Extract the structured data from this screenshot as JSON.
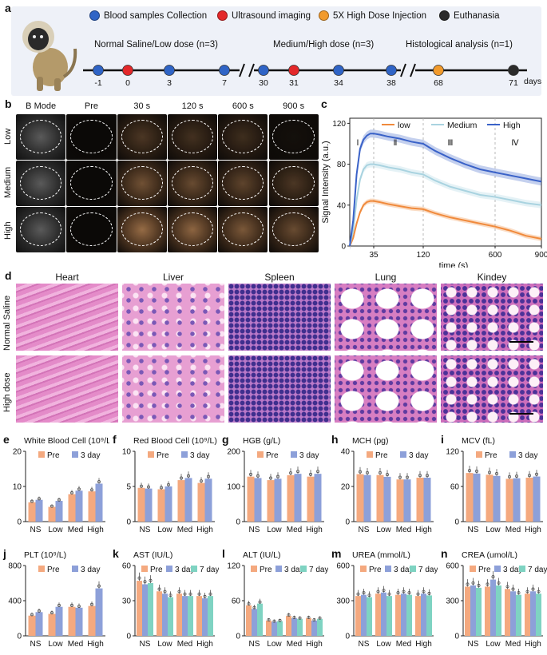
{
  "panel_labels": {
    "a": "a",
    "b": "b",
    "c": "c",
    "d": "d",
    "e": "e",
    "f": "f",
    "g": "g",
    "h": "h",
    "i": "i",
    "j": "j",
    "k": "k",
    "l": "l",
    "m": "m",
    "n": "n"
  },
  "legend": [
    {
      "label": "Blood samples Collection",
      "color": "#2f64c6"
    },
    {
      "label": "Ultrasound imaging",
      "color": "#e3282a"
    },
    {
      "label": "5X High Dose Injection",
      "color": "#f19a2c"
    },
    {
      "label": "Euthanasia",
      "color": "#2b2b2b"
    }
  ],
  "timeline": {
    "phase1": "Normal Saline/Low  dose (n=3)",
    "phase2": "Medium/High  dose (n=3)",
    "phase3": "Histological analysis (n=1)",
    "unit": "days",
    "days": [
      "-1",
      "0",
      "3",
      "7",
      "30",
      "31",
      "34",
      "38",
      "68",
      "71"
    ],
    "day_colors": [
      "#2f64c6",
      "#e3282a",
      "#2f64c6",
      "#2f64c6",
      "#2f64c6",
      "#e3282a",
      "#2f64c6",
      "#2f64c6",
      "#f19a2c",
      "#2b2b2b"
    ]
  },
  "ultrasound": {
    "columns": [
      "B Mode",
      "Pre",
      "30 s",
      "120 s",
      "600 s",
      "900 s"
    ],
    "rows": [
      "Low",
      "Medium",
      "High"
    ]
  },
  "histology": {
    "columns": [
      "Heart",
      "Liver",
      "Spleen",
      "Lung",
      "Kindey"
    ],
    "rows": [
      "Normal Saline",
      "High dose"
    ]
  },
  "colors": {
    "pre": "#f4a97f",
    "day3": "#8da0d9",
    "day7": "#7fd3c2",
    "low": "#f08a3c",
    "medium": "#a9d3e0",
    "high": "#3a62c8"
  },
  "chart_data": [
    {
      "type": "line",
      "panel": "c",
      "ylabel": "Signal Intensity (a.u.)",
      "xlabel": "time (s)",
      "xticks": [
        "35",
        "120",
        "600",
        "900"
      ],
      "yticks": [
        0,
        40,
        80,
        120
      ],
      "ylim": [
        0,
        125
      ],
      "phases": [
        "Ⅰ",
        "Ⅱ",
        "Ⅲ",
        "Ⅳ"
      ],
      "x": [
        0,
        5,
        10,
        15,
        20,
        25,
        30,
        35,
        45,
        60,
        80,
        100,
        120,
        200,
        300,
        400,
        500,
        600,
        700,
        800,
        900
      ],
      "series": [
        {
          "name": "low",
          "values": [
            0,
            8,
            22,
            33,
            40,
            43,
            44,
            44,
            43,
            41,
            39,
            37,
            36,
            32,
            28,
            25,
            22,
            19,
            15,
            10,
            7
          ]
        },
        {
          "name": "Medium",
          "values": [
            0,
            15,
            45,
            65,
            75,
            79,
            80,
            80,
            79,
            77,
            75,
            72,
            70,
            64,
            58,
            54,
            50,
            48,
            45,
            42,
            40
          ]
        },
        {
          "name": "High",
          "values": [
            0,
            25,
            70,
            95,
            104,
            108,
            110,
            110,
            109,
            107,
            105,
            102,
            100,
            93,
            86,
            80,
            75,
            72,
            69,
            66,
            63
          ]
        }
      ]
    },
    {
      "type": "bar",
      "panel": "e",
      "title": "White Blood Cell (10⁹/L)",
      "categories": [
        "NS",
        "Low",
        "Med",
        "High"
      ],
      "ylim": [
        0,
        20
      ],
      "yticks": [
        0,
        10,
        20
      ],
      "series": [
        {
          "name": "Pre",
          "values": [
            5.5,
            4.2,
            7.8,
            8.6
          ]
        },
        {
          "name": "3 day",
          "values": [
            6.2,
            5.9,
            8.8,
            10.8
          ]
        }
      ]
    },
    {
      "type": "bar",
      "panel": "f",
      "title": "Red Blood Cell (10⁹/L)",
      "categories": [
        "NS",
        "Low",
        "Med",
        "High"
      ],
      "ylim": [
        0,
        10
      ],
      "yticks": [
        0,
        5,
        10
      ],
      "series": [
        {
          "name": "Pre",
          "values": [
            4.8,
            4.6,
            5.9,
            5.5
          ]
        },
        {
          "name": "3 day",
          "values": [
            4.7,
            5.0,
            6.2,
            6.1
          ]
        }
      ]
    },
    {
      "type": "bar",
      "panel": "g",
      "title": "HGB (g/L)",
      "categories": [
        "NS",
        "Low",
        "Med",
        "High"
      ],
      "ylim": [
        0,
        200
      ],
      "yticks": [
        0,
        100,
        200
      ],
      "series": [
        {
          "name": "Pre",
          "values": [
            128,
            118,
            132,
            128
          ]
        },
        {
          "name": "3 day",
          "values": [
            124,
            122,
            136,
            136
          ]
        }
      ]
    },
    {
      "type": "bar",
      "panel": "h",
      "title": "MCH (pg)",
      "categories": [
        "NS",
        "Low",
        "Med",
        "High"
      ],
      "ylim": [
        0,
        40
      ],
      "yticks": [
        0,
        20,
        40
      ],
      "series": [
        {
          "name": "Pre",
          "values": [
            27,
            26.5,
            24,
            25
          ]
        },
        {
          "name": "3 day",
          "values": [
            26.5,
            25.5,
            24,
            25
          ]
        }
      ]
    },
    {
      "type": "bar",
      "panel": "i",
      "title": "MCV (fL)",
      "categories": [
        "NS",
        "Low",
        "Med",
        "High"
      ],
      "ylim": [
        0,
        120
      ],
      "yticks": [
        0,
        60,
        120
      ],
      "series": [
        {
          "name": "Pre",
          "values": [
            83,
            80,
            73,
            75
          ]
        },
        {
          "name": "3 day",
          "values": [
            82,
            78,
            74,
            77
          ]
        }
      ]
    },
    {
      "type": "bar",
      "panel": "j",
      "title": "PLT (10⁹/L)",
      "categories": [
        "NS",
        "Low",
        "Med",
        "High"
      ],
      "ylim": [
        0,
        800
      ],
      "yticks": [
        0,
        400,
        800
      ],
      "series": [
        {
          "name": "Pre",
          "values": [
            230,
            250,
            330,
            340
          ]
        },
        {
          "name": "3 day",
          "values": [
            270,
            330,
            320,
            540
          ]
        }
      ]
    },
    {
      "type": "bar",
      "panel": "k",
      "title": "AST (IU/L)",
      "categories": [
        "NS",
        "Low",
        "Med",
        "High"
      ],
      "ylim": [
        0,
        60
      ],
      "yticks": [
        0,
        30,
        60
      ],
      "series": [
        {
          "name": "Pre",
          "values": [
            47,
            38,
            36,
            34
          ]
        },
        {
          "name": "3 day",
          "values": [
            44,
            36,
            34,
            32
          ]
        },
        {
          "name": "7 day",
          "values": [
            45,
            33,
            34,
            34
          ]
        }
      ]
    },
    {
      "type": "bar",
      "panel": "l",
      "title": "ALT (IU/L)",
      "categories": [
        "NS",
        "Low",
        "Med",
        "High"
      ],
      "ylim": [
        0,
        120
      ],
      "yticks": [
        0,
        60,
        120
      ],
      "series": [
        {
          "name": "Pre",
          "values": [
            52,
            26,
            34,
            30
          ]
        },
        {
          "name": "3 day",
          "values": [
            46,
            24,
            30,
            26
          ]
        },
        {
          "name": "7 day",
          "values": [
            55,
            25,
            29,
            29
          ]
        }
      ]
    },
    {
      "type": "bar",
      "panel": "m",
      "title": "UREA (mmol/L)",
      "categories": [
        "NS",
        "Low",
        "Med",
        "High"
      ],
      "ylim": [
        0,
        600
      ],
      "yticks": [
        0,
        300,
        600
      ],
      "series": [
        {
          "name": "Pre",
          "values": [
            340,
            360,
            350,
            340
          ]
        },
        {
          "name": "3 day",
          "values": [
            350,
            370,
            360,
            360
          ]
        },
        {
          "name": "7 day",
          "values": [
            330,
            340,
            350,
            345
          ]
        }
      ]
    },
    {
      "type": "bar",
      "panel": "n",
      "title": "CREA (umol/L)",
      "categories": [
        "NS",
        "Low",
        "Med",
        "High"
      ],
      "ylim": [
        0,
        600
      ],
      "yticks": [
        0,
        300,
        600
      ],
      "series": [
        {
          "name": "Pre",
          "values": [
            420,
            420,
            400,
            360
          ]
        },
        {
          "name": "3 day",
          "values": [
            430,
            480,
            380,
            380
          ]
        },
        {
          "name": "7 day",
          "values": [
            410,
            430,
            350,
            360
          ]
        }
      ]
    }
  ]
}
